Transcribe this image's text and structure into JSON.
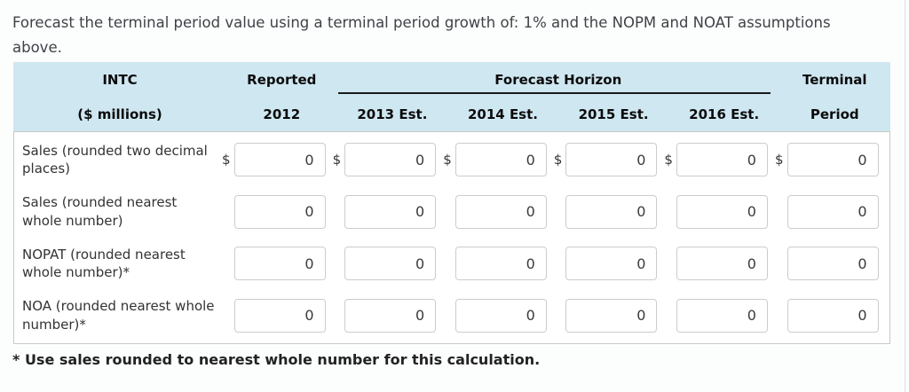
{
  "page": {
    "intro_line1": "Forecast the terminal period value using a terminal period growth of: 1% and the NOPM and NOAT assumptions",
    "intro_line2": "above.",
    "footnote": "* Use sales rounded to nearest whole number for this calculation."
  },
  "table": {
    "header": {
      "company": "INTC",
      "units": "($ millions)",
      "reported_label": "Reported",
      "reported_year": "2012",
      "forecast_group_label": "Forecast Horizon",
      "forecast_years": [
        "2013 Est.",
        "2014 Est.",
        "2015 Est.",
        "2016 Est."
      ],
      "terminal_line1": "Terminal",
      "terminal_line2": "Period"
    },
    "rows": [
      {
        "label": "Sales (rounded two decimal places)",
        "currency_prefix": "$",
        "values": [
          "0",
          "0",
          "0",
          "0",
          "0",
          "0"
        ]
      },
      {
        "label": "Sales (rounded nearest whole number)",
        "currency_prefix": "",
        "values": [
          "0",
          "0",
          "0",
          "0",
          "0",
          "0"
        ]
      },
      {
        "label": "NOPAT (rounded nearest whole number)*",
        "currency_prefix": "",
        "values": [
          "0",
          "0",
          "0",
          "0",
          "0",
          "0"
        ]
      },
      {
        "label": "NOA (rounded nearest whole number)*",
        "currency_prefix": "",
        "values": [
          "0",
          "0",
          "0",
          "0",
          "0",
          "0"
        ]
      }
    ]
  },
  "colors": {
    "header_bg": "#cfe7f1",
    "table_border": "#c9c9c9",
    "input_border": "#cccccc",
    "underline": "#1a1a1a",
    "text_dark": "#333333"
  }
}
